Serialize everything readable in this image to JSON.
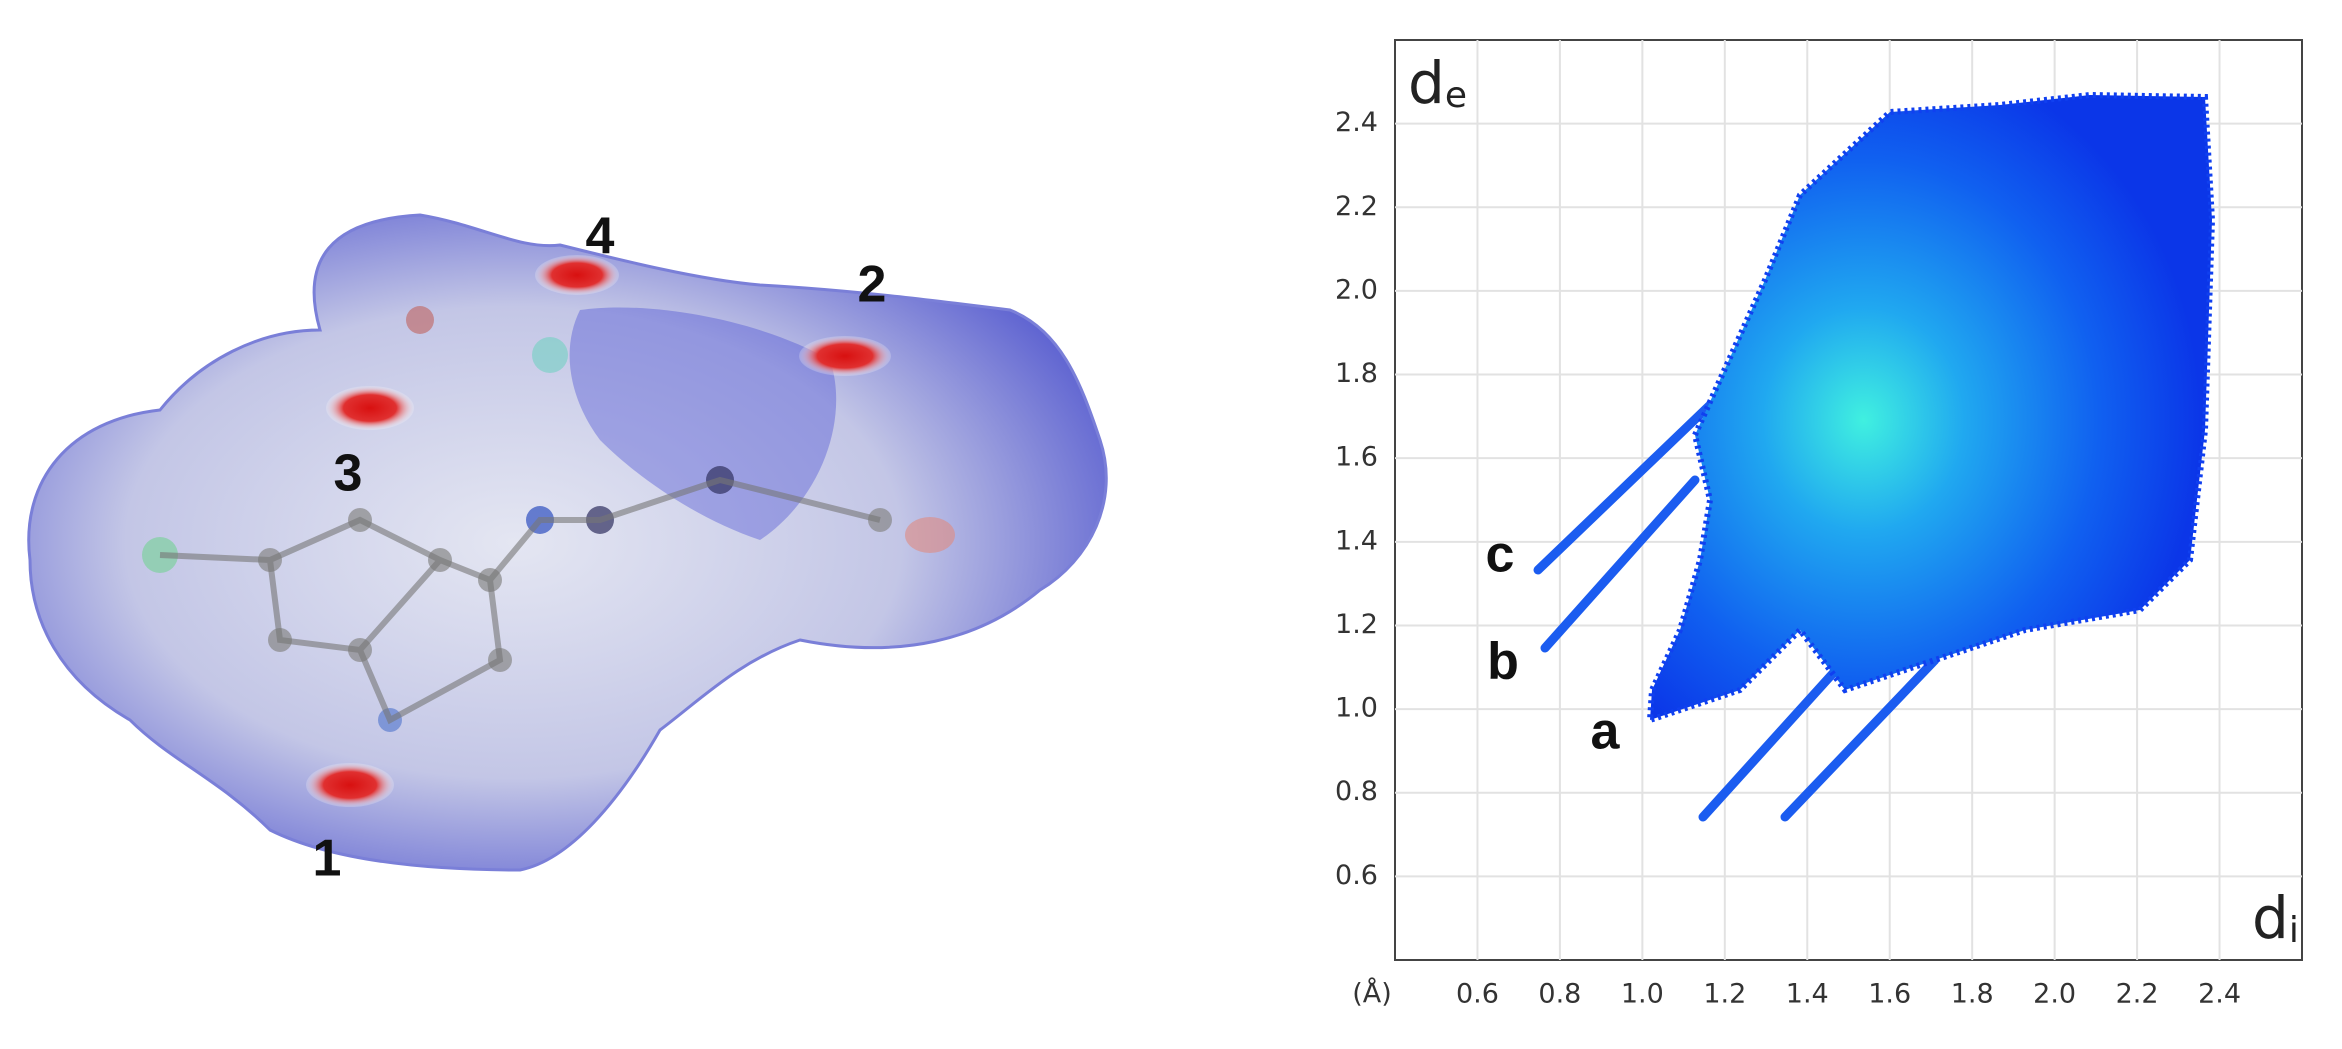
{
  "surface_panel": {
    "labels": [
      "1",
      "2",
      "3",
      "4"
    ]
  },
  "chart_data": {
    "type": "fingerprint",
    "x_label": "d",
    "x_label_sub": "i",
    "y_label": "d",
    "y_label_sub": "e",
    "unit_label": "(Å)",
    "xlim": [
      0.4,
      2.6
    ],
    "ylim": [
      0.4,
      2.6
    ],
    "xticks": [
      0.6,
      0.8,
      {
        "value": 1.0,
        "label": "1.0"
      },
      1.2,
      1.4,
      1.6,
      1.8,
      {
        "value": 2.0,
        "label": "2.0"
      },
      2.2,
      2.4
    ],
    "yticks": [
      0.6,
      0.8,
      {
        "value": 1.0,
        "label": "1.0"
      },
      1.2,
      1.4,
      1.6,
      1.8,
      {
        "value": 2.0,
        "label": "2.0"
      },
      2.2,
      2.4
    ],
    "grid": true,
    "annotations": [
      "a",
      "b",
      "c"
    ]
  }
}
